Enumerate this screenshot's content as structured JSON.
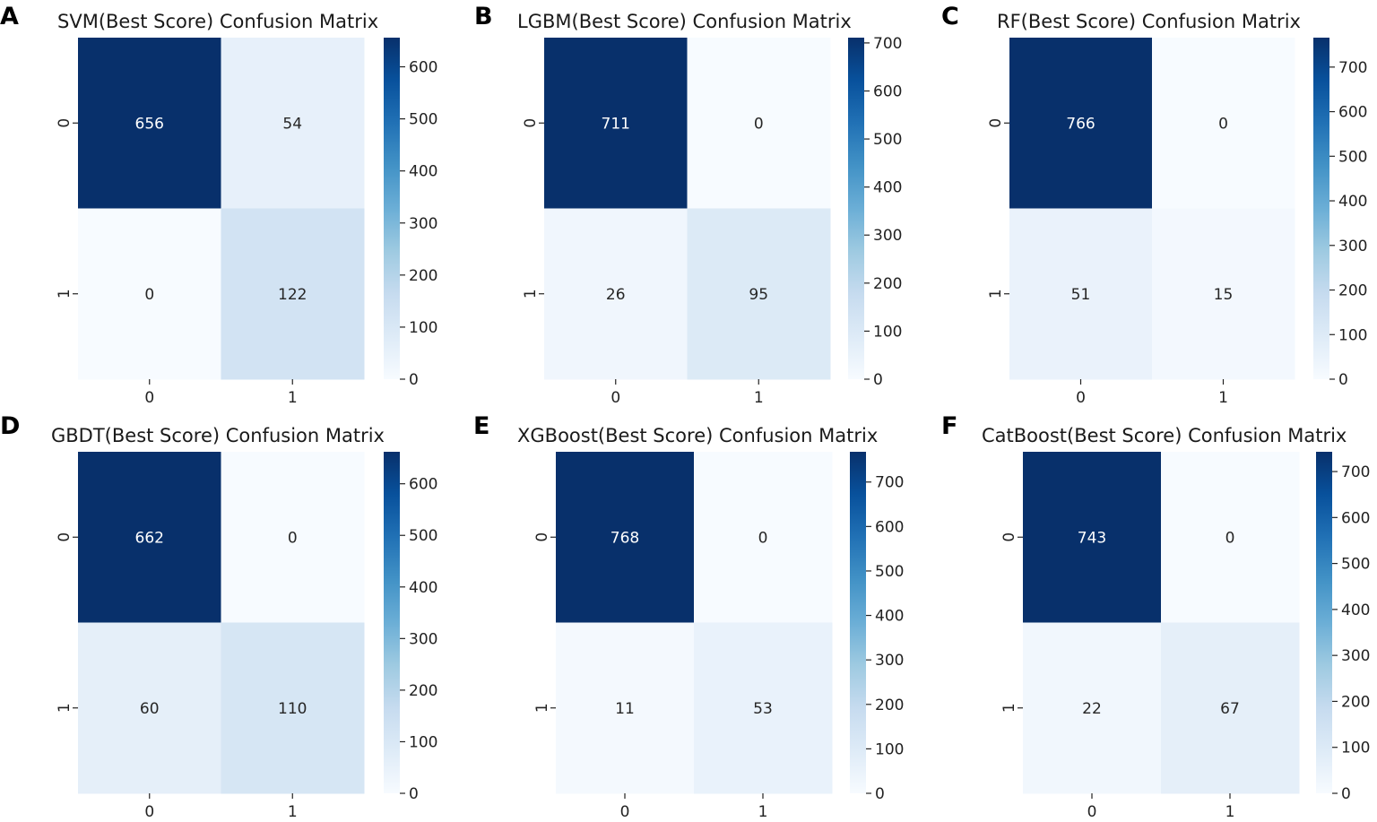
{
  "chart_data": [
    {
      "type": "heatmap",
      "panel": "A",
      "title": "SVM(Best Score) Confusion Matrix",
      "x_tick_labels": [
        "0",
        "1"
      ],
      "y_tick_labels": [
        "0",
        "1"
      ],
      "matrix": [
        [
          656,
          54
        ],
        [
          0,
          122
        ]
      ],
      "colorbar": {
        "min": 0,
        "max": 656,
        "ticks": [
          0,
          100,
          200,
          300,
          400,
          500,
          600
        ]
      },
      "colormap": "Blues"
    },
    {
      "type": "heatmap",
      "panel": "B",
      "title": "LGBM(Best Score) Confusion Matrix",
      "x_tick_labels": [
        "0",
        "1"
      ],
      "y_tick_labels": [
        "0",
        "1"
      ],
      "matrix": [
        [
          711,
          0
        ],
        [
          26,
          95
        ]
      ],
      "colorbar": {
        "min": 0,
        "max": 711,
        "ticks": [
          0,
          100,
          200,
          300,
          400,
          500,
          600,
          700
        ]
      },
      "colormap": "Blues"
    },
    {
      "type": "heatmap",
      "panel": "C",
      "title": "RF(Best Score) Confusion Matrix",
      "x_tick_labels": [
        "0",
        "1"
      ],
      "y_tick_labels": [
        "0",
        "1"
      ],
      "matrix": [
        [
          766,
          0
        ],
        [
          51,
          15
        ]
      ],
      "colorbar": {
        "min": 0,
        "max": 766,
        "ticks": [
          0,
          100,
          200,
          300,
          400,
          500,
          600,
          700
        ]
      },
      "colormap": "Blues"
    },
    {
      "type": "heatmap",
      "panel": "D",
      "title": "GBDT(Best Score) Confusion Matrix",
      "x_tick_labels": [
        "0",
        "1"
      ],
      "y_tick_labels": [
        "0",
        "1"
      ],
      "matrix": [
        [
          662,
          0
        ],
        [
          60,
          110
        ]
      ],
      "colorbar": {
        "min": 0,
        "max": 662,
        "ticks": [
          0,
          100,
          200,
          300,
          400,
          500,
          600
        ]
      },
      "colormap": "Blues"
    },
    {
      "type": "heatmap",
      "panel": "E",
      "title": "XGBoost(Best Score) Confusion Matrix",
      "x_tick_labels": [
        "0",
        "1"
      ],
      "y_tick_labels": [
        "0",
        "1"
      ],
      "matrix": [
        [
          768,
          0
        ],
        [
          11,
          53
        ]
      ],
      "colorbar": {
        "min": 0,
        "max": 768,
        "ticks": [
          0,
          100,
          200,
          300,
          400,
          500,
          600,
          700
        ]
      },
      "colormap": "Blues"
    },
    {
      "type": "heatmap",
      "panel": "F",
      "title": "CatBoost(Best Score) Confusion Matrix",
      "x_tick_labels": [
        "0",
        "1"
      ],
      "y_tick_labels": [
        "0",
        "1"
      ],
      "matrix": [
        [
          743,
          0
        ],
        [
          22,
          67
        ]
      ],
      "colorbar": {
        "min": 0,
        "max": 743,
        "ticks": [
          0,
          100,
          200,
          300,
          400,
          500,
          600,
          700
        ]
      },
      "colormap": "Blues"
    }
  ]
}
